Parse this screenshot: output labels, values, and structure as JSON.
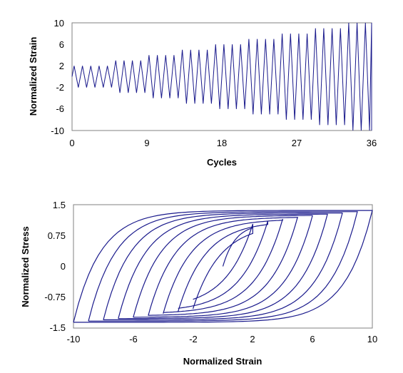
{
  "chart_data": [
    {
      "type": "line",
      "title": "",
      "xlabel": "Cycles",
      "ylabel": "Normalized Strain",
      "xlim": [
        0,
        36
      ],
      "ylim": [
        -10,
        10
      ],
      "xticks": [
        0,
        9,
        18,
        27,
        36
      ],
      "yticks": [
        10,
        6,
        2,
        -2,
        -6,
        -10
      ],
      "grid": false,
      "legend": "none",
      "line_color": "#1a1a8c",
      "series": [
        {
          "blocks": [
            {
              "amplitude": 2,
              "cycles": 5
            },
            {
              "amplitude": 3,
              "cycles": 4
            },
            {
              "amplitude": 4,
              "cycles": 4
            },
            {
              "amplitude": 5,
              "cycles": 4
            },
            {
              "amplitude": 6,
              "cycles": 4
            },
            {
              "amplitude": 7,
              "cycles": 4
            },
            {
              "amplitude": 8,
              "cycles": 4
            },
            {
              "amplitude": 9,
              "cycles": 4
            },
            {
              "amplitude": 10,
              "cycles": 3
            }
          ]
        }
      ]
    },
    {
      "type": "line",
      "title": "",
      "xlabel": "Normalized Strain",
      "ylabel": "Normalized Stress",
      "xlim": [
        -10,
        10
      ],
      "ylim": [
        -1.5,
        1.5
      ],
      "xticks": [
        -10,
        -6,
        -2,
        2,
        6,
        10
      ],
      "yticks": [
        "1.5",
        "0.75",
        "0",
        "-0.75",
        "-1.5"
      ],
      "grid": false,
      "legend": "none",
      "line_color": "#1a1a8c",
      "series": [
        {
          "amplitudes": [
            2,
            3,
            4,
            5,
            6,
            7,
            8,
            9,
            10
          ],
          "peak_stress": [
            1.03,
            1.1,
            1.15,
            1.2,
            1.24,
            1.27,
            1.3,
            1.33,
            1.36
          ]
        }
      ]
    }
  ],
  "top": {
    "xlabel": "Cycles",
    "ylabel": "Normalized Strain",
    "xticks": [
      "0",
      "9",
      "18",
      "27",
      "36"
    ],
    "yticks": [
      "10",
      "6",
      "2",
      "-2",
      "-6",
      "-10"
    ]
  },
  "bottom": {
    "xlabel": "Normalized Strain",
    "ylabel": "Normalized Stress",
    "xticks": [
      "-10",
      "-6",
      "-2",
      "2",
      "6",
      "10"
    ],
    "yticks": [
      "1.5",
      "0.75",
      "0",
      "-0.75",
      "-1.5"
    ]
  }
}
